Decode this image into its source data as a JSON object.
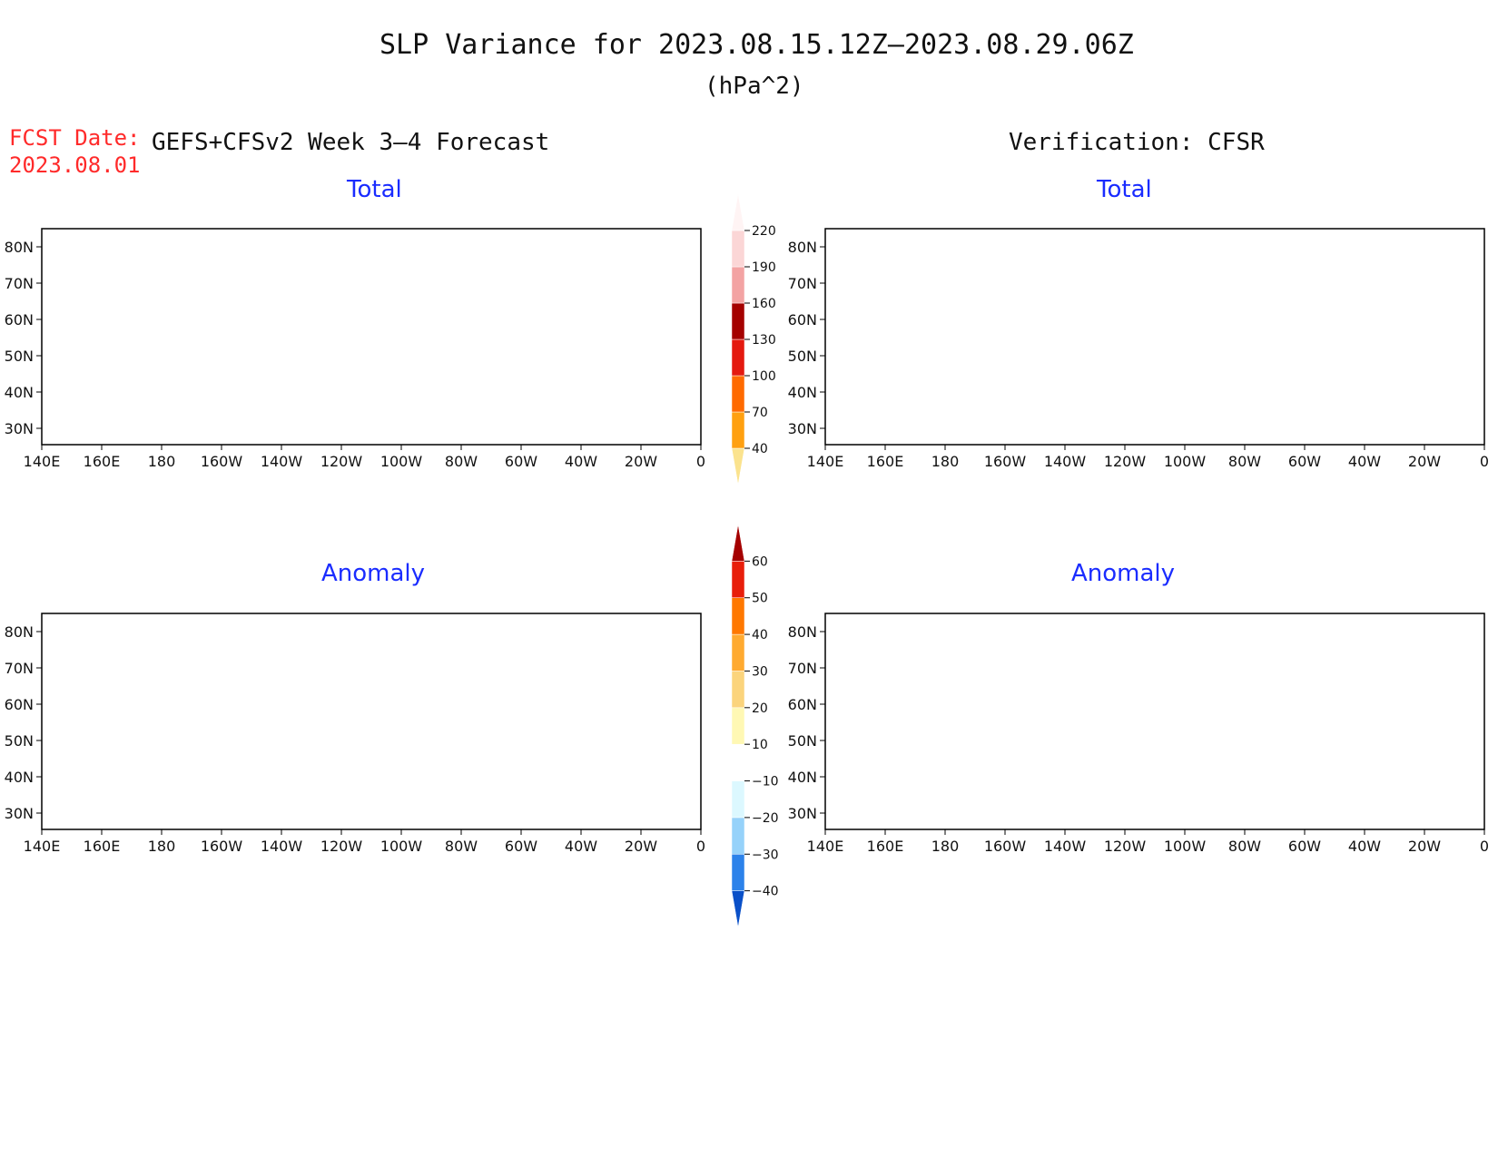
{
  "title": "SLP Variance for 2023.08.15.12Z–2023.08.29.06Z",
  "units": "(hPa^2)",
  "fcst_date_label": "FCST Date:",
  "fcst_date_value": "2023.08.01",
  "forecast_header": "GEFS+CFSv2 Week 3–4 Forecast",
  "verification_header": "Verification: CFSR",
  "panels": {
    "fc_total": {
      "title": "Total"
    },
    "obs_total": {
      "title": "Total"
    },
    "fc_anom": {
      "title": "Anomaly"
    },
    "obs_anom": {
      "title": "Anomaly"
    }
  },
  "lat_labels": [
    "80N",
    "70N",
    "60N",
    "50N",
    "40N",
    "30N"
  ],
  "lon_labels": [
    "140E",
    "160E",
    "180",
    "160W",
    "140W",
    "120W",
    "100W",
    "80W",
    "60W",
    "40W",
    "20W",
    "0"
  ],
  "total_colorbar": {
    "labels": [
      "40",
      "70",
      "100",
      "130",
      "160",
      "190",
      "220"
    ],
    "colors": [
      "#fbe38e",
      "#ffa010",
      "#ff6a00",
      "#e4190f",
      "#a50100",
      "#f3a3a3",
      "#fbd6d6",
      "#fff4f4"
    ]
  },
  "anomaly_colorbar": {
    "labels": [
      "−40",
      "−30",
      "−20",
      "−10",
      "10",
      "20",
      "30",
      "40",
      "50",
      "60"
    ],
    "colors": [
      "#0a50c8",
      "#2c82ea",
      "#96d2fa",
      "#dcf8ff",
      "#ffffff",
      "#fff8b4",
      "#fbd47c",
      "#ffaa30",
      "#ff7800",
      "#e81e0a",
      "#a50000"
    ]
  },
  "colors": {
    "title_blue": "#1a2cff",
    "fcst_red": "#ff2a2a"
  }
}
